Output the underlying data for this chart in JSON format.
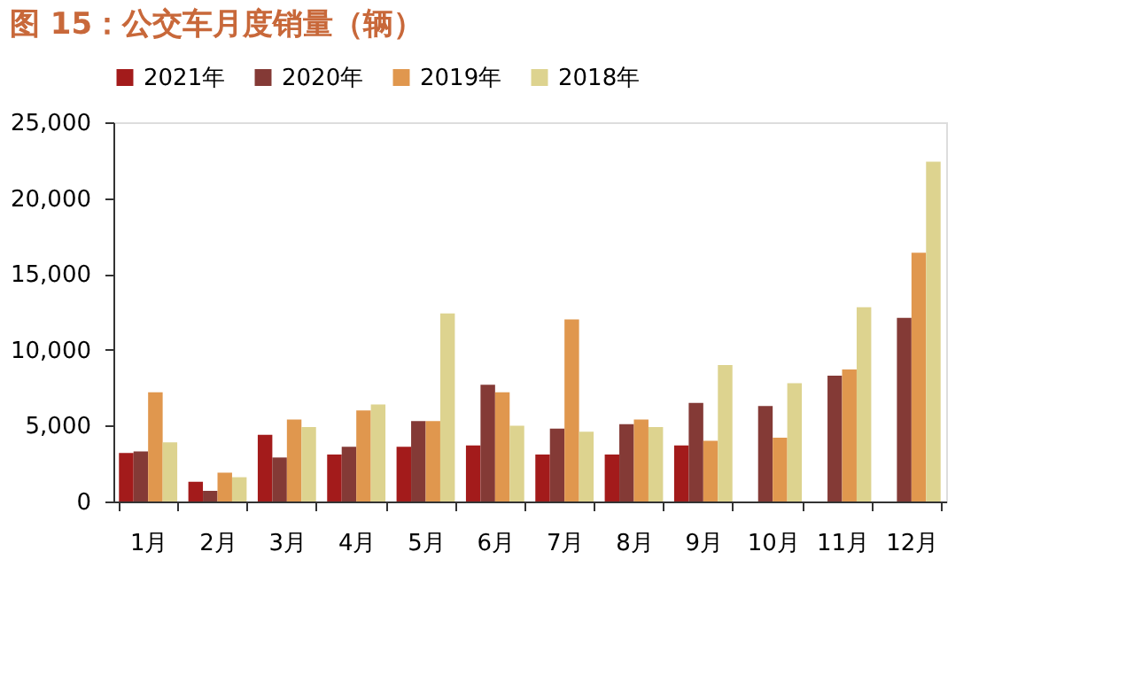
{
  "chart_data": {
    "type": "bar",
    "title": "图 15：公交车月度销量（辆）",
    "categories": [
      "1月",
      "2月",
      "3月",
      "4月",
      "5月",
      "6月",
      "7月",
      "8月",
      "9月",
      "10月",
      "11月",
      "12月"
    ],
    "series": [
      {
        "name": "2021年",
        "color": "#a31b1b",
        "values": [
          3200,
          1300,
          4400,
          3100,
          3600,
          3700,
          3100,
          3100,
          3700,
          null,
          null,
          null
        ]
      },
      {
        "name": "2020年",
        "color": "#843a36",
        "values": [
          3300,
          700,
          2900,
          3600,
          5300,
          7700,
          4800,
          5100,
          6500,
          6300,
          8300,
          12100
        ]
      },
      {
        "name": "2019年",
        "color": "#e0974e",
        "values": [
          7200,
          1900,
          5400,
          6000,
          5300,
          7200,
          12000,
          5400,
          4000,
          4200,
          8700,
          16400
        ]
      },
      {
        "name": "2018年",
        "color": "#ddd38f",
        "values": [
          3900,
          1600,
          4900,
          6400,
          12400,
          5000,
          4600,
          4900,
          9000,
          7800,
          12800,
          22400
        ]
      }
    ],
    "ylim": [
      0,
      25000
    ],
    "yticks": [
      {
        "value": 0,
        "label": "0"
      },
      {
        "value": 5000,
        "label": "5,000"
      },
      {
        "value": 10000,
        "label": "10,000"
      },
      {
        "value": 15000,
        "label": "15,000"
      },
      {
        "value": 20000,
        "label": "20,000"
      },
      {
        "value": 25000,
        "label": "25,000"
      }
    ],
    "grid": false,
    "legend": "top"
  }
}
